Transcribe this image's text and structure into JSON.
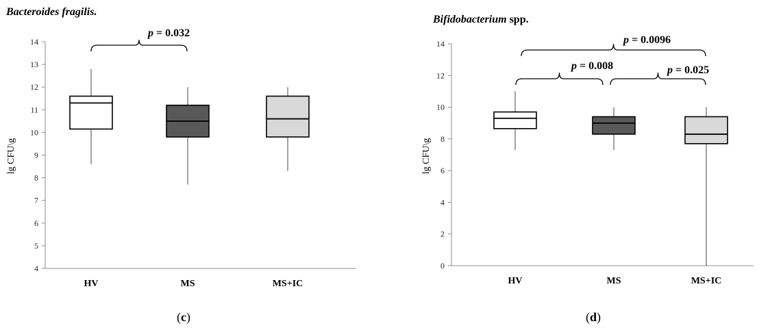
{
  "chart_data": [
    {
      "type": "box",
      "title": "Bacteroides fragilis.",
      "title_italic": "Bacteroides fragilis.",
      "title_regular": "",
      "ylabel": "lg CFU\\g",
      "panel_label": "c",
      "ylim": [
        4,
        14
      ],
      "yticks": [
        4,
        5,
        6,
        7,
        8,
        9,
        10,
        11,
        12,
        13,
        14
      ],
      "categories": [
        "HV",
        "MS",
        "MS+IC"
      ],
      "fill_colors": [
        "#ffffff",
        "#595959",
        "#d9d9d9"
      ],
      "boxes": [
        {
          "name": "HV",
          "min": 8.6,
          "q1": 10.15,
          "median": 11.3,
          "q3": 11.6,
          "max": 12.8
        },
        {
          "name": "MS",
          "min": 7.7,
          "q1": 9.8,
          "median": 10.5,
          "q3": 11.2,
          "max": 12.0
        },
        {
          "name": "MS+IC",
          "min": 8.3,
          "q1": 9.8,
          "median": 10.6,
          "q3": 11.6,
          "max": 12.0
        }
      ],
      "comparisons": [
        {
          "from": "HV",
          "to": "MS",
          "p_label": "p",
          "p_value": "= 0.032"
        }
      ]
    },
    {
      "type": "box",
      "title": "Bifidobacterium spp.",
      "title_italic": "Bifidobacterium",
      "title_regular": " spp.",
      "ylabel": "lg CFU\\g",
      "panel_label": "d",
      "ylim": [
        0,
        14
      ],
      "yticks": [
        0,
        2,
        4,
        6,
        8,
        10,
        12,
        14
      ],
      "categories": [
        "HV",
        "MS",
        "MS+IC"
      ],
      "fill_colors": [
        "#ffffff",
        "#595959",
        "#d9d9d9"
      ],
      "boxes": [
        {
          "name": "HV",
          "min": 7.3,
          "q1": 8.65,
          "median": 9.3,
          "q3": 9.7,
          "max": 11.0
        },
        {
          "name": "MS",
          "min": 7.3,
          "q1": 8.3,
          "median": 9.0,
          "q3": 9.4,
          "max": 10.0
        },
        {
          "name": "MS+IC",
          "min": 0,
          "q1": 7.7,
          "median": 8.3,
          "q3": 9.4,
          "max": 10.0
        }
      ],
      "comparisons": [
        {
          "from": "HV",
          "to": "MS+IC",
          "p_label": "p",
          "p_value": "= 0.0096"
        },
        {
          "from": "HV",
          "to": "MS",
          "p_label": "p",
          "p_value": "= 0.008"
        },
        {
          "from": "MS",
          "to": "MS+IC",
          "p_label": "p",
          "p_value": "= 0.025"
        }
      ]
    }
  ]
}
